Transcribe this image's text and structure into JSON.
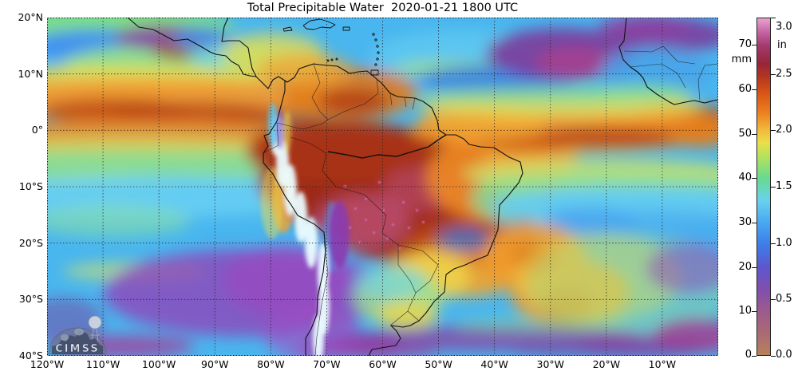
{
  "title": "Total Precipitable Water  2020-01-21 1800 UTC",
  "axes": {
    "lat_ticks": [
      {
        "label": "20°N",
        "deg": 20
      },
      {
        "label": "10°N",
        "deg": 10
      },
      {
        "label": "0°",
        "deg": 0
      },
      {
        "label": "10°S",
        "deg": -10
      },
      {
        "label": "20°S",
        "deg": -20
      },
      {
        "label": "30°S",
        "deg": -30
      },
      {
        "label": "40°S",
        "deg": -40
      }
    ],
    "lon_ticks": [
      {
        "label": "120°W",
        "deg": -120
      },
      {
        "label": "110°W",
        "deg": -110
      },
      {
        "label": "100°W",
        "deg": -100
      },
      {
        "label": "90°W",
        "deg": -90
      },
      {
        "label": "80°W",
        "deg": -80
      },
      {
        "label": "70°W",
        "deg": -70
      },
      {
        "label": "60°W",
        "deg": -60
      },
      {
        "label": "50°W",
        "deg": -50
      },
      {
        "label": "40°W",
        "deg": -40
      },
      {
        "label": "30°W",
        "deg": -30
      },
      {
        "label": "20°W",
        "deg": -20
      },
      {
        "label": "10°W",
        "deg": -10
      }
    ]
  },
  "colorbar": {
    "unit_left": "mm",
    "unit_right": "in",
    "max_mm": 76.2,
    "max_in": 3.0,
    "mm_ticks": [
      {
        "label": "0",
        "mm": 0
      },
      {
        "label": "10",
        "mm": 10
      },
      {
        "label": "20",
        "mm": 20
      },
      {
        "label": "30",
        "mm": 30
      },
      {
        "label": "40",
        "mm": 40
      },
      {
        "label": "50",
        "mm": 50
      },
      {
        "label": "60",
        "mm": 60
      },
      {
        "label": "70",
        "mm": 70
      }
    ],
    "in_ticks": [
      {
        "label": "0.0",
        "in": 0.0
      },
      {
        "label": "0.5",
        "in": 0.5
      },
      {
        "label": "1.0",
        "in": 1.0
      },
      {
        "label": "1.5",
        "in": 1.5
      },
      {
        "label": "2.0",
        "in": 2.0
      },
      {
        "label": "2.5",
        "in": 2.5
      },
      {
        "label": "3.0",
        "in": 3.0
      }
    ],
    "stops": [
      {
        "mm": 0,
        "color": "#b98058"
      },
      {
        "mm": 5,
        "color": "#a96a74"
      },
      {
        "mm": 10,
        "color": "#9c5a8e"
      },
      {
        "mm": 15,
        "color": "#7f4fae"
      },
      {
        "mm": 20,
        "color": "#5d57cf"
      },
      {
        "mm": 25,
        "color": "#3f7ce8"
      },
      {
        "mm": 30,
        "color": "#47a9f2"
      },
      {
        "mm": 35,
        "color": "#68d2ee"
      },
      {
        "mm": 40,
        "color": "#67da8f"
      },
      {
        "mm": 45,
        "color": "#b5e25c"
      },
      {
        "mm": 48,
        "color": "#eadf4a"
      },
      {
        "mm": 51,
        "color": "#f2b83a"
      },
      {
        "mm": 55,
        "color": "#ec7d20"
      },
      {
        "mm": 60,
        "color": "#d44f15"
      },
      {
        "mm": 63,
        "color": "#b23522"
      },
      {
        "mm": 66,
        "color": "#97253a"
      },
      {
        "mm": 70,
        "color": "#a23a6e"
      },
      {
        "mm": 73,
        "color": "#c463a2"
      },
      {
        "mm": 76.2,
        "color": "#e8a2d2"
      }
    ]
  },
  "logo": {
    "text": "CIMSS"
  }
}
